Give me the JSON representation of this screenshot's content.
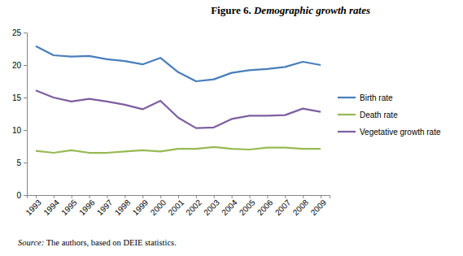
{
  "chart_data": {
    "type": "line",
    "title": "Figure 6. Demographic growth rates",
    "annotations": [
      "Source: The authors, based on DEIE statistics."
    ],
    "categories": [
      "1993",
      "1994",
      "1995",
      "1996",
      "1997",
      "1998",
      "1999",
      "2000",
      "2001",
      "2002",
      "2003",
      "2004",
      "2005",
      "2006",
      "2007",
      "2008",
      "2009"
    ],
    "series": [
      {
        "name": "Birth rate",
        "color": "#4a7ebb",
        "values": [
          22.9,
          21.5,
          21.3,
          21.4,
          20.9,
          20.6,
          20.1,
          21.1,
          18.9,
          17.5,
          17.8,
          18.8,
          19.2,
          19.4,
          19.7,
          20.5,
          20.0
        ]
      },
      {
        "name": "Death rate",
        "color": "#98b954",
        "values": [
          6.8,
          6.5,
          6.9,
          6.5,
          6.5,
          6.7,
          6.9,
          6.7,
          7.1,
          7.1,
          7.4,
          7.1,
          7.0,
          7.3,
          7.3,
          7.1,
          7.1
        ]
      },
      {
        "name": "Vegetative growth rate",
        "color": "#7d5fa0",
        "values": [
          16.1,
          15.0,
          14.4,
          14.8,
          14.4,
          13.9,
          13.2,
          14.5,
          11.9,
          10.3,
          10.4,
          11.7,
          12.2,
          12.2,
          12.3,
          13.3,
          12.8
        ]
      }
    ],
    "ylim": [
      0,
      25
    ],
    "yticks": [
      0,
      5,
      10,
      15,
      20,
      25
    ],
    "grid": false,
    "legend": "right"
  }
}
